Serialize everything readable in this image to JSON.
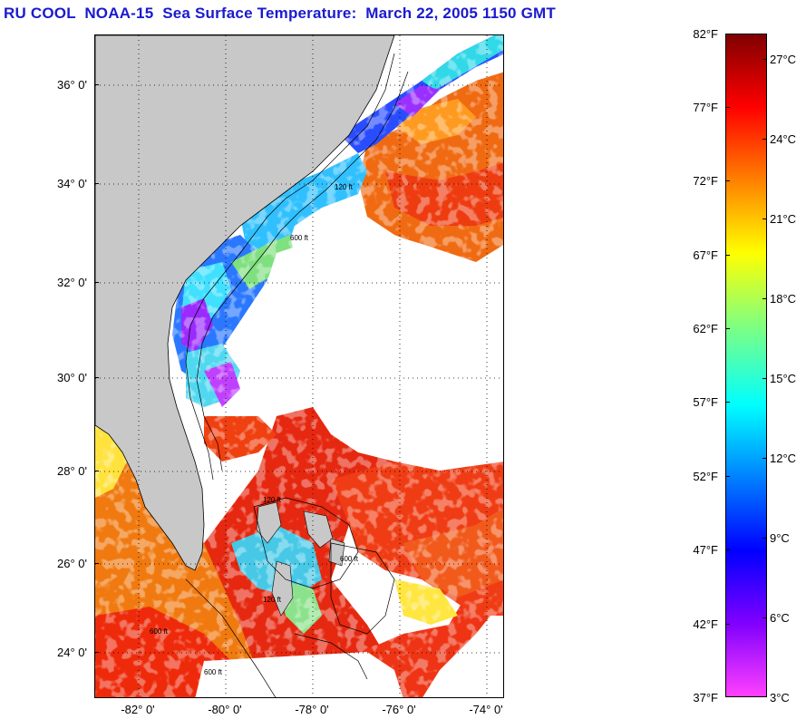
{
  "title": "RU COOL  NOAA-15  Sea Surface Temperature:  March 22, 2005 1150 GMT",
  "map": {
    "lat_labels": [
      "36° 0'",
      "34° 0'",
      "32° 0'",
      "30° 0'",
      "28° 0'",
      "26° 0'",
      "24° 0'"
    ],
    "lon_labels": [
      "-82° 0'",
      "-80° 0'",
      "-78° 0'",
      "-76° 0'",
      "-74° 0'"
    ],
    "lat_range": [
      23,
      37
    ],
    "lon_range": [
      -83.1,
      -73.9
    ],
    "grid": "dotted",
    "land_color": "#c8c8c8",
    "contour_labels": [
      "120 ft",
      "600 ft",
      "120 ft",
      "600 ft",
      "120 ft",
      "600 ft",
      "600 ft"
    ]
  },
  "colorbar": {
    "fahrenheit_labels": [
      "82°F",
      "77°F",
      "72°F",
      "67°F",
      "62°F",
      "57°F",
      "52°F",
      "47°F",
      "42°F",
      "37°F"
    ],
    "celsius_labels": [
      "27°C",
      "24°C",
      "21°C",
      "18°C",
      "15°C",
      "12°C",
      "9°C",
      "6°C",
      "3°C"
    ],
    "range_f": [
      37,
      82
    ],
    "colors_top_to_bottom": [
      "#800000",
      "#ff0000",
      "#ff8000",
      "#ffff00",
      "#80ff80",
      "#00ffff",
      "#0080ff",
      "#0000ff",
      "#8000ff",
      "#ff40ff"
    ]
  }
}
